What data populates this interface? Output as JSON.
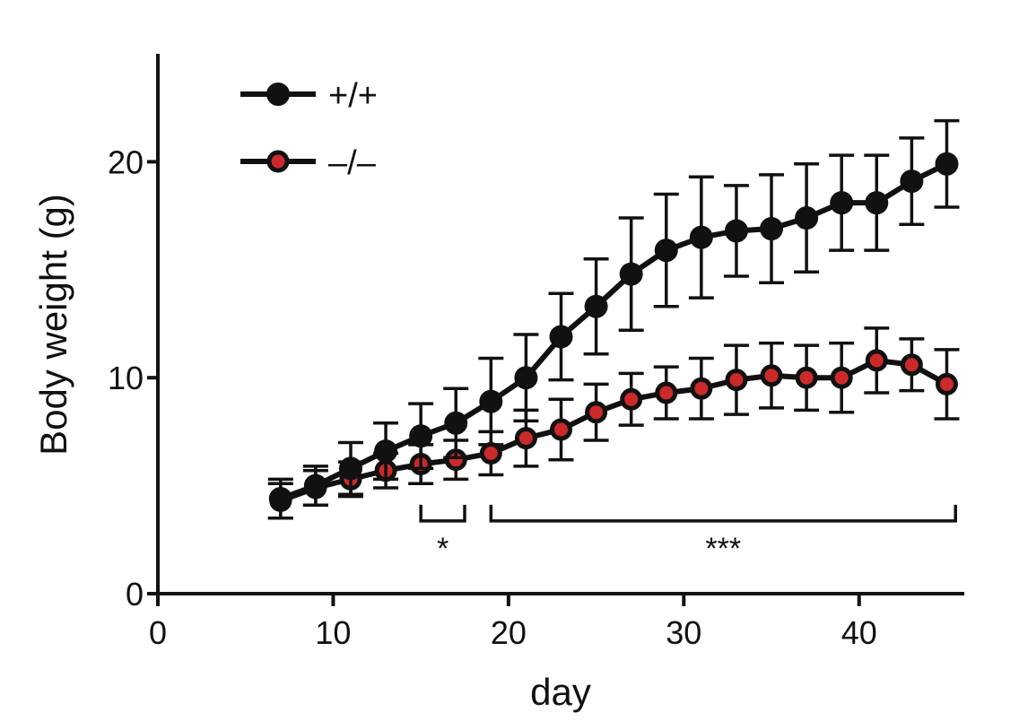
{
  "chart_data": {
    "type": "line",
    "title": "",
    "xlabel": "day",
    "ylabel": "Body weight (g)",
    "xlim": [
      0,
      46
    ],
    "ylim": [
      0,
      25
    ],
    "xticks": [
      0,
      10,
      20,
      30,
      40
    ],
    "yticks": [
      0,
      10,
      20
    ],
    "x_tick_labels": [
      "0",
      "10",
      "20",
      "30",
      "40"
    ],
    "y_tick_labels": [
      "0",
      "10",
      "20"
    ],
    "grid": false,
    "legend_position": "top-left",
    "series": [
      {
        "name": "+/+",
        "color": "#111111",
        "marker_fill": "#111111",
        "x": [
          7,
          9,
          11,
          13,
          15,
          17,
          19,
          21,
          23,
          25,
          27,
          29,
          31,
          33,
          35,
          37,
          39,
          41,
          43,
          45
        ],
        "y": [
          4.4,
          5.0,
          5.8,
          6.6,
          7.3,
          7.9,
          8.9,
          10.0,
          11.9,
          13.3,
          14.8,
          15.9,
          16.5,
          16.8,
          16.9,
          17.4,
          18.1,
          18.1,
          19.1,
          19.9
        ],
        "error": [
          0.9,
          0.9,
          1.2,
          1.3,
          1.5,
          1.6,
          2.0,
          2.0,
          2.0,
          2.2,
          2.6,
          2.6,
          2.8,
          2.1,
          2.5,
          2.5,
          2.2,
          2.2,
          2.0,
          2.0
        ]
      },
      {
        "name": "–/–",
        "color": "#111111",
        "marker_fill": "#cc2a2a",
        "x": [
          7,
          9,
          11,
          13,
          15,
          17,
          19,
          21,
          23,
          25,
          27,
          29,
          31,
          33,
          35,
          37,
          39,
          41,
          43,
          45
        ],
        "y": [
          4.3,
          4.9,
          5.3,
          5.7,
          6.0,
          6.2,
          6.5,
          7.2,
          7.6,
          8.4,
          9.0,
          9.3,
          9.5,
          9.9,
          10.1,
          10.0,
          10.0,
          10.8,
          10.6,
          9.7
        ],
        "error": [
          0.8,
          0.8,
          0.8,
          0.8,
          0.9,
          0.9,
          1.0,
          1.3,
          1.4,
          1.3,
          1.2,
          1.2,
          1.4,
          1.6,
          1.5,
          1.5,
          1.6,
          1.5,
          1.2,
          1.6
        ]
      }
    ],
    "annotations": [
      {
        "label": "*",
        "x_start": 15,
        "x_end": 17.5,
        "y": 3.7
      },
      {
        "label": "***",
        "x_start": 19,
        "x_end": 45.5,
        "y": 3.7
      }
    ]
  }
}
